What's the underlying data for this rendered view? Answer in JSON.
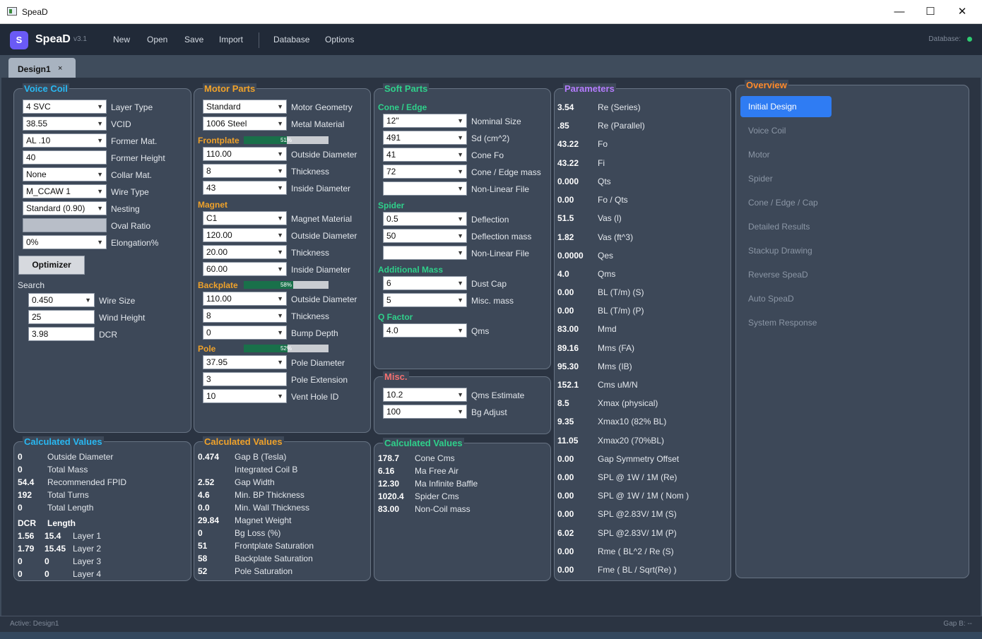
{
  "window": {
    "title": "SpeaD",
    "minimize": "—",
    "maximize": "☐",
    "close": "✕"
  },
  "app": {
    "logo": "S",
    "name": "SpeaD",
    "version": "v3.1",
    "menu": [
      "New",
      "Open",
      "Save",
      "Import",
      "Database",
      "Options"
    ],
    "db_status": "Database:",
    "db_status_color": "#2ecc71"
  },
  "tabs": [
    {
      "label": "Design1",
      "close": "×"
    }
  ],
  "voice_coil": {
    "title": "Voice Coil",
    "fields": [
      {
        "value": "4 SVC",
        "label": "Layer Type"
      },
      {
        "value": "38.55",
        "label": "VCID"
      },
      {
        "value": "AL .10",
        "label": "Former Mat."
      },
      {
        "value": "40",
        "label": "Former Height"
      },
      {
        "value": "None",
        "label": "Collar Mat."
      },
      {
        "value": "M_CCAW 1",
        "label": "Wire Type"
      },
      {
        "value": "Standard (0.90)",
        "label": "Nesting"
      },
      {
        "value": "",
        "label": "Oval Ratio"
      },
      {
        "value": "0%",
        "label": "Elongation%"
      }
    ],
    "optimizer": "Optimizer",
    "search_label": "Search",
    "search": [
      {
        "value": "0.450",
        "label": "Wire Size"
      },
      {
        "value": "25",
        "label": "Wind Height"
      },
      {
        "value": "3.98",
        "label": "DCR"
      }
    ]
  },
  "motor_parts": {
    "title": "Motor Parts",
    "top": [
      {
        "value": "Standard",
        "label": "Motor Geometry"
      },
      {
        "value": "1006 Steel",
        "label": "Metal Material"
      }
    ],
    "frontplate": {
      "label": "Frontplate",
      "pct": "51%",
      "fill": 0.51
    },
    "fp_fields": [
      {
        "value": "110.00",
        "label": "Outside Diameter"
      },
      {
        "value": "8",
        "label": "Thickness"
      },
      {
        "value": "43",
        "label": "Inside Diameter"
      }
    ],
    "magnet_label": "Magnet",
    "mag_fields": [
      {
        "value": "C1",
        "label": "Magnet Material"
      },
      {
        "value": "120.00",
        "label": "Outside Diameter"
      },
      {
        "value": "20.00",
        "label": "Thickness"
      },
      {
        "value": "60.00",
        "label": "Inside Diameter"
      }
    ],
    "backplate": {
      "label": "Backplate",
      "pct": "58%",
      "fill": 0.58
    },
    "bp_fields": [
      {
        "value": "110.00",
        "label": "Outside Diameter"
      },
      {
        "value": "8",
        "label": "Thickness"
      },
      {
        "value": "0",
        "label": "Bump Depth"
      }
    ],
    "pole": {
      "label": "Pole",
      "pct": "52%",
      "fill": 0.52
    },
    "pole_fields": [
      {
        "value": "37.95",
        "label": "Pole Diameter"
      },
      {
        "value": "3",
        "label": "Pole Extension"
      },
      {
        "value": "10",
        "label": "Vent Hole ID"
      }
    ]
  },
  "soft_parts": {
    "title": "Soft Parts",
    "cone_label": "Cone / Edge",
    "cone_fields": [
      {
        "value": "12\"",
        "label": "Nominal Size"
      },
      {
        "value": "491",
        "label": "Sd (cm^2)"
      },
      {
        "value": "41",
        "label": "Cone Fo"
      },
      {
        "value": "72",
        "label": "Cone / Edge mass"
      },
      {
        "value": "",
        "label": "Non-Linear File"
      }
    ],
    "spider_label": "Spider",
    "spider_fields": [
      {
        "value": "0.5",
        "label": "Deflection"
      },
      {
        "value": "50",
        "label": "Deflection mass"
      },
      {
        "value": "",
        "label": "Non-Linear File"
      }
    ],
    "addmass_label": "Additional Mass",
    "addmass_fields": [
      {
        "value": "6",
        "label": "Dust Cap"
      },
      {
        "value": "5",
        "label": "Misc. mass"
      }
    ],
    "q_label": "Q Factor",
    "q_fields": [
      {
        "value": "4.0",
        "label": "Qms"
      }
    ]
  },
  "misc": {
    "title": "Misc.",
    "fields": [
      {
        "value": "10.2",
        "label": "Qms Estimate"
      },
      {
        "value": "100",
        "label": "Bg Adjust"
      }
    ]
  },
  "parameters": {
    "title": "Parameters",
    "rows": [
      {
        "value": "3.54",
        "label": "Re (Series)"
      },
      {
        "value": ".85",
        "label": "Re (Parallel)"
      },
      {
        "value": "43.22",
        "label": "Fo"
      },
      {
        "value": "43.22",
        "label": "Fi"
      },
      {
        "value": "0.000",
        "label": "Qts"
      },
      {
        "value": "0.00",
        "label": "Fo / Qts"
      },
      {
        "value": "51.5",
        "label": "Vas (l)"
      },
      {
        "value": "1.82",
        "label": "Vas (ft^3)"
      },
      {
        "value": "0.0000",
        "label": "Qes"
      },
      {
        "value": "4.0",
        "label": "Qms"
      },
      {
        "value": "0.00",
        "label": "BL (T/m) (S)"
      },
      {
        "value": "0.00",
        "label": "BL (T/m) (P)"
      },
      {
        "value": "83.00",
        "label": "Mmd"
      },
      {
        "value": "89.16",
        "label": "Mms (FA)"
      },
      {
        "value": "95.30",
        "label": "Mms (IB)"
      },
      {
        "value": "152.1",
        "label": "Cms uM/N"
      },
      {
        "value": "8.5",
        "label": "Xmax (physical)"
      },
      {
        "value": "9.35",
        "label": "Xmax10 (82% BL)"
      },
      {
        "value": "11.05",
        "label": "Xmax20 (70%BL)"
      },
      {
        "value": "0.00",
        "label": "Gap Symmetry Offset"
      },
      {
        "value": "0.00",
        "label": "SPL @ 1W / 1M (Re)"
      },
      {
        "value": "0.00",
        "label": "SPL @ 1W / 1M ( Nom )"
      },
      {
        "value": "0.00",
        "label": "SPL @2.83V/ 1M (S)"
      },
      {
        "value": "6.02",
        "label": "SPL @2.83V/ 1M (P)"
      },
      {
        "value": "0.00",
        "label": "Rme ( BL^2 / Re (S)"
      },
      {
        "value": "0.00",
        "label": "Fme ( BL / Sqrt(Re) )"
      }
    ]
  },
  "overview": {
    "title": "Overview",
    "items": [
      "Initial Design",
      "Voice Coil",
      "Motor",
      "Spider",
      "Cone / Edge / Cap",
      "Detailed Results",
      "Stackup Drawing",
      "Reverse SpeaD",
      "Auto SpeaD",
      "System Response"
    ]
  },
  "calc_vc": {
    "title": "Calculated Values",
    "rows": [
      {
        "value": "0",
        "label": "Outside Diameter"
      },
      {
        "value": "0",
        "label": "Total Mass"
      },
      {
        "value": "54.4",
        "label": "Recommended FPID"
      },
      {
        "value": "192",
        "label": "Total Turns"
      },
      {
        "value": "0",
        "label": "Total Length"
      }
    ],
    "dcr_header": "DCR",
    "len_header": "Length",
    "layers": [
      {
        "dcr": "1.56",
        "len": "15.4",
        "label": "Layer 1"
      },
      {
        "dcr": "1.79",
        "len": "15.45",
        "label": "Layer 2"
      },
      {
        "dcr": "0",
        "len": "0",
        "label": "Layer 3"
      },
      {
        "dcr": "0",
        "len": "0",
        "label": "Layer 4"
      }
    ]
  },
  "calc_motor": {
    "title": "Calculated Values",
    "rows": [
      {
        "value": "0.474",
        "label": "Gap B (Tesla)"
      },
      {
        "value": "",
        "label": "Integrated Coil B"
      },
      {
        "value": "2.52",
        "label": "Gap Width"
      },
      {
        "value": "4.6",
        "label": "Min. BP Thickness"
      },
      {
        "value": "0.0",
        "label": "Min. Wall Thickness"
      },
      {
        "value": "29.84",
        "label": "Magnet Weight"
      },
      {
        "value": "0",
        "label": "Bg Loss (%)"
      },
      {
        "value": "51",
        "label": "Frontplate Saturation"
      },
      {
        "value": "58",
        "label": "Backplate Saturation"
      },
      {
        "value": "52",
        "label": "Pole Saturation"
      }
    ]
  },
  "calc_soft": {
    "title": "Calculated Values",
    "rows": [
      {
        "value": "178.7",
        "label": "Cone Cms"
      },
      {
        "value": "6.16",
        "label": "Ma Free Air"
      },
      {
        "value": "12.30",
        "label": "Ma Infinite Baffle"
      },
      {
        "value": "1020.4",
        "label": "Spider Cms"
      },
      {
        "value": "83.00",
        "label": "Non-Coil mass"
      }
    ]
  },
  "status": {
    "left": "Active: Design1",
    "right": "Gap B: --"
  }
}
